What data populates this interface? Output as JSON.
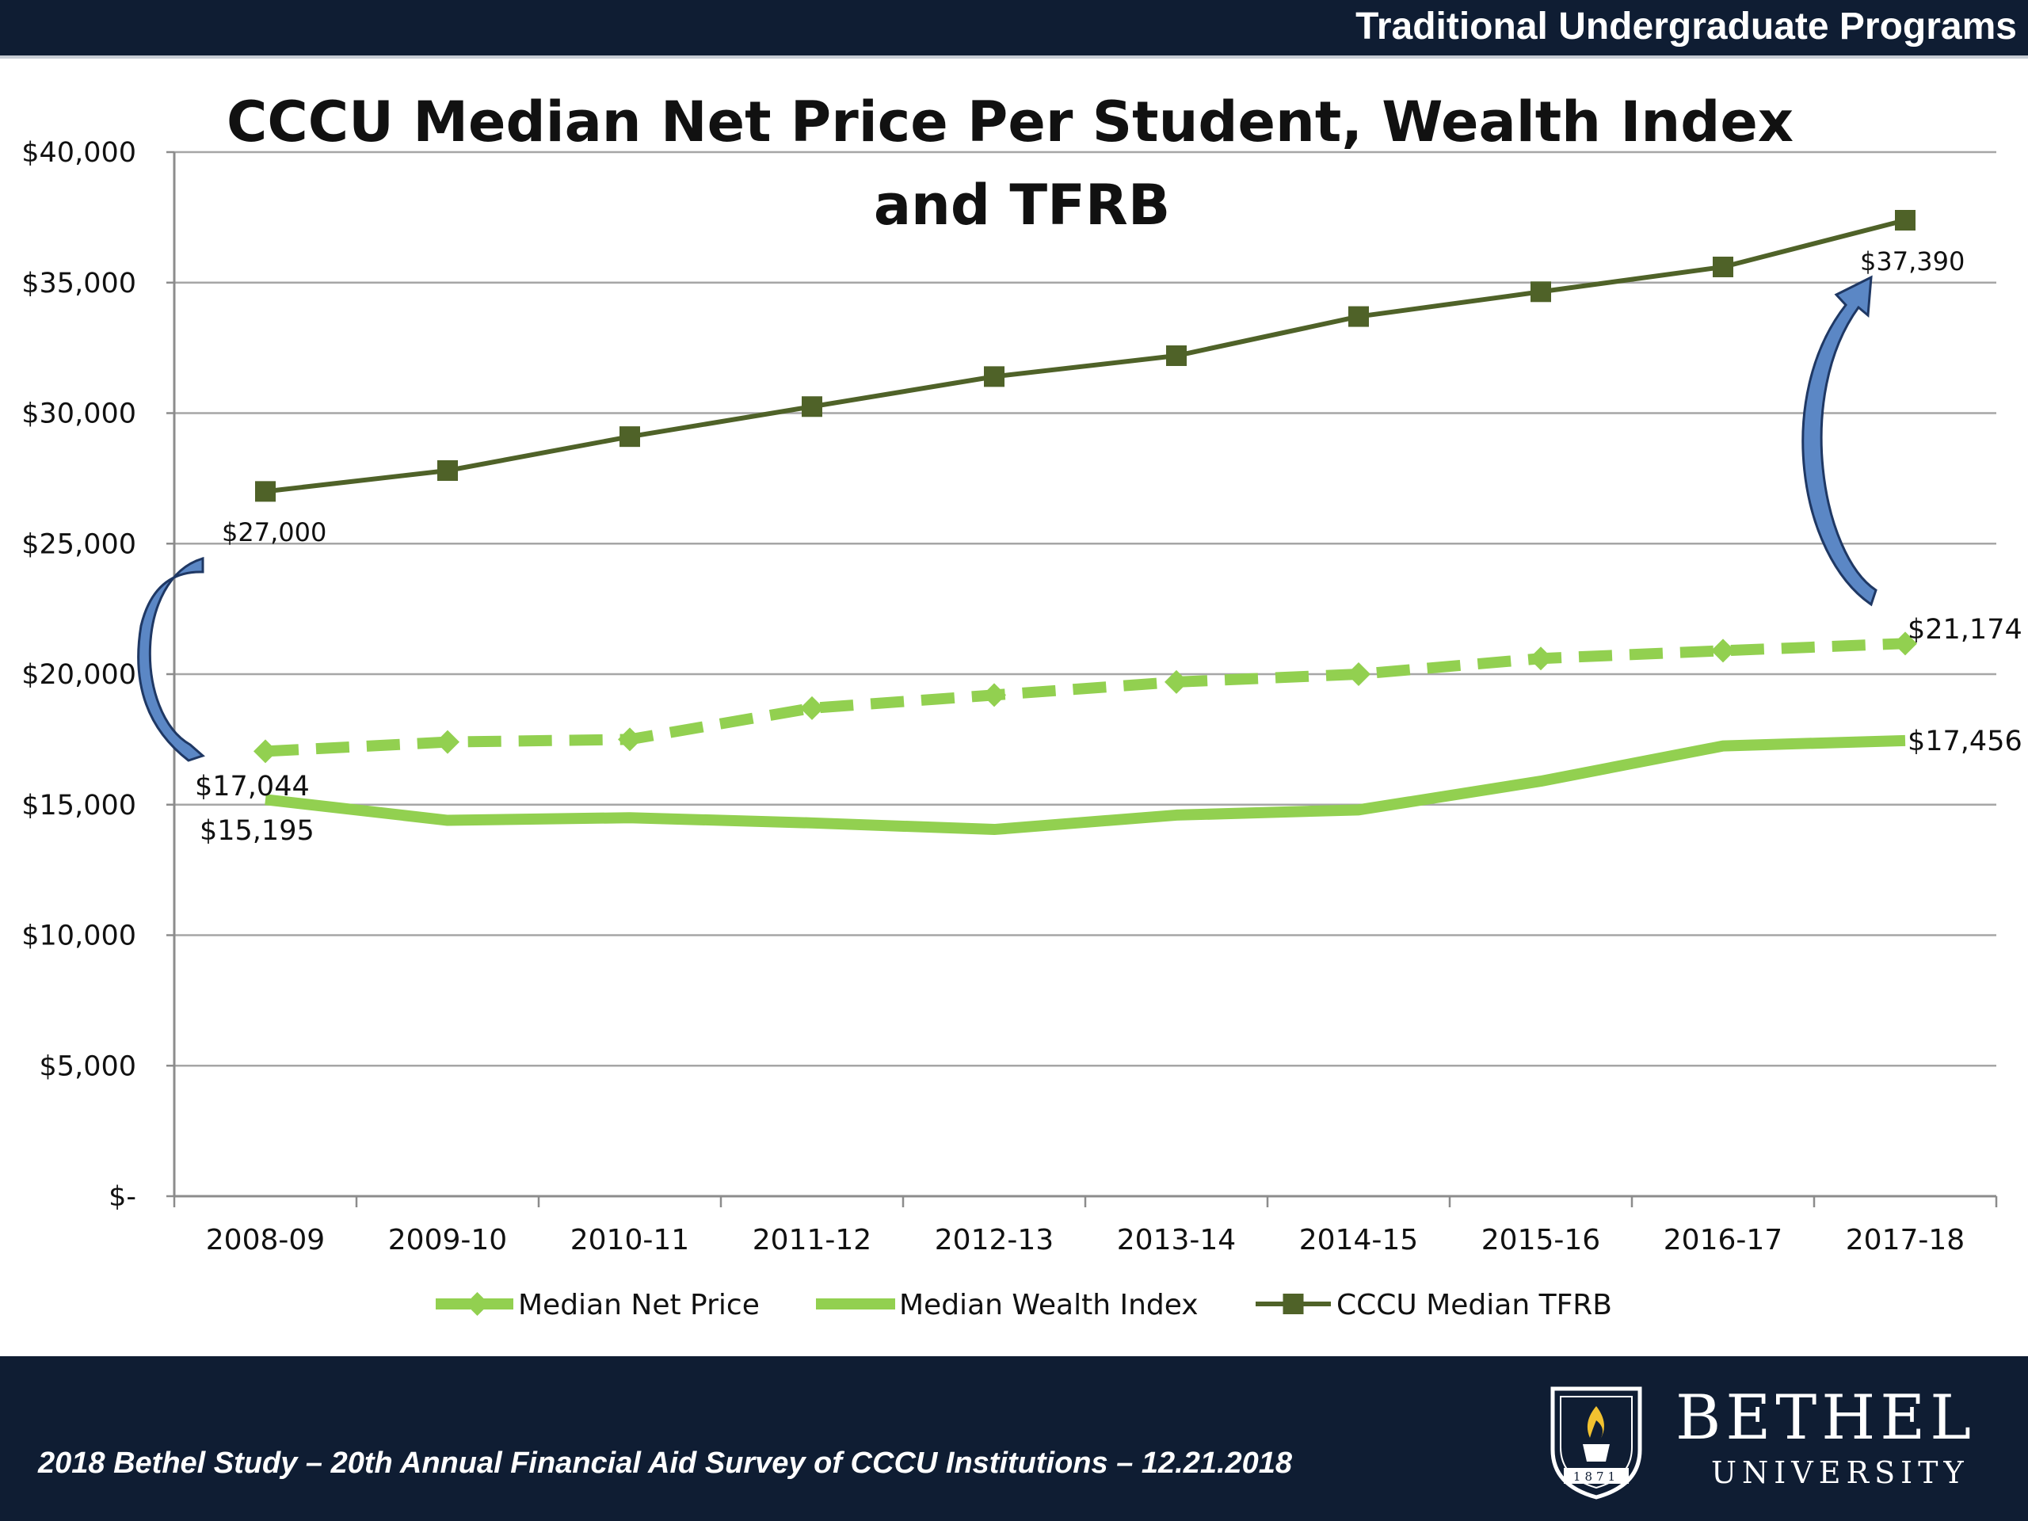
{
  "header": {
    "label": "Traditional Undergraduate Programs"
  },
  "footer": {
    "text": "2018 Bethel Study – 20th Annual Financial Aid Survey of CCCU Institutions – 12.21.2018",
    "logo_name": "BETHEL",
    "logo_sub": "UNIVERSITY",
    "logo_year": "1871"
  },
  "colors": {
    "navy": "#0f1d33",
    "tfrb": "#4f6228",
    "net_price": "#92d050",
    "wealth": "#92d050",
    "arrow": "#5b87c5"
  },
  "chart_data": {
    "type": "line",
    "title_line1": "CCCU Median Net Price Per Student, Wealth Index",
    "title_line2": "and TFRB",
    "categories": [
      "2008-09",
      "2009-10",
      "2010-11",
      "2011-12",
      "2012-13",
      "2013-14",
      "2014-15",
      "2015-16",
      "2016-17",
      "2017-18"
    ],
    "y_ticks": [
      "$-",
      "$5,000",
      "$10,000",
      "$15,000",
      "$20,000",
      "$25,000",
      "$30,000",
      "$35,000",
      "$40,000"
    ],
    "ylim": [
      0,
      40000
    ],
    "grid": true,
    "legend_position": "bottom",
    "series": [
      {
        "name": "Median Net Price",
        "style": "dashed-diamond",
        "values": [
          17044,
          17400,
          17500,
          18700,
          19200,
          19700,
          20000,
          20600,
          20900,
          21174
        ]
      },
      {
        "name": "Median Wealth Index",
        "style": "solid-thick",
        "values": [
          15195,
          14400,
          14500,
          14300,
          14050,
          14600,
          14800,
          15900,
          17250,
          17456
        ]
      },
      {
        "name": "CCCU Median TFRB",
        "style": "line-square",
        "values": [
          27000,
          27800,
          29100,
          30250,
          31400,
          32200,
          33700,
          34650,
          35600,
          37390
        ]
      }
    ],
    "annotations": {
      "tfrb_first": "$27,000",
      "tfrb_last": "$37,390",
      "net_first": "$17,044",
      "net_last": "$21,174",
      "wealth_first": "$15,195",
      "wealth_last": "$17,456"
    }
  }
}
